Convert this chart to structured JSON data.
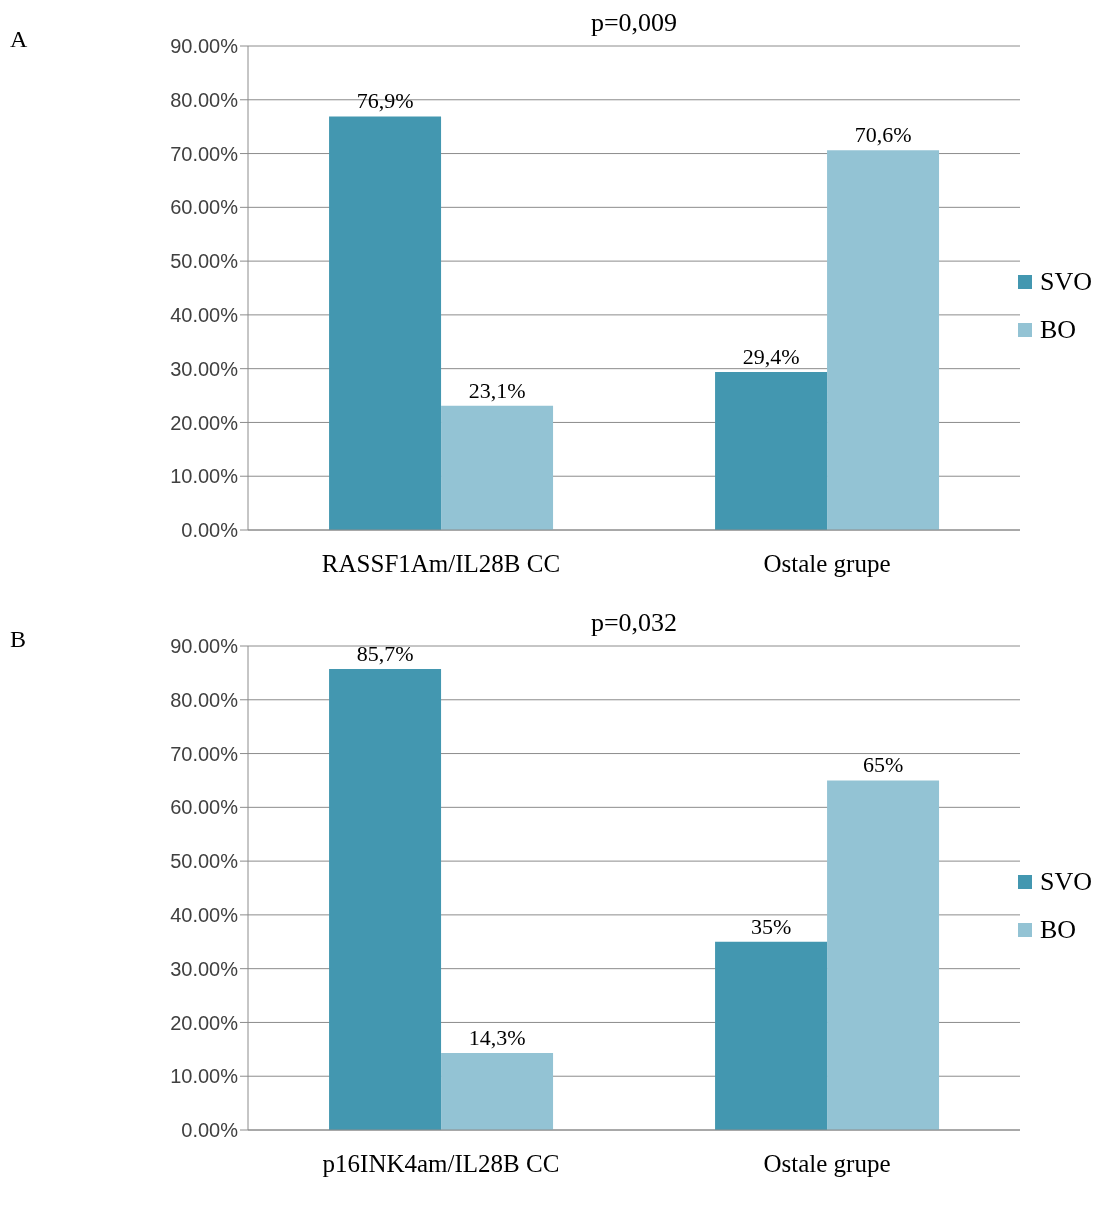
{
  "chart_data": [
    {
      "type": "bar",
      "title": "p=0,009",
      "annotations": [
        "A"
      ],
      "categories": [
        "RASSF1Am/IL28B CC",
        "Ostale grupe"
      ],
      "series": [
        {
          "name": "SVO",
          "color": "#4397b0",
          "values": [
            76.9,
            29.4
          ],
          "value_labels": [
            "76,9%",
            "29,4%"
          ]
        },
        {
          "name": "BO",
          "color": "#93c3d4",
          "values": [
            23.1,
            70.6
          ],
          "value_labels": [
            "23,1%",
            "70,6%"
          ]
        }
      ],
      "ylim": [
        0,
        90
      ],
      "yticks": [
        {
          "value": 0,
          "label": "0.00%"
        },
        {
          "value": 10,
          "label": "10.00%"
        },
        {
          "value": 20,
          "label": "20.00%"
        },
        {
          "value": 30,
          "label": "30.00%"
        },
        {
          "value": 40,
          "label": "40.00%"
        },
        {
          "value": 50,
          "label": "50.00%"
        },
        {
          "value": 60,
          "label": "60.00%"
        },
        {
          "value": 70,
          "label": "70.00%"
        },
        {
          "value": 80,
          "label": "80.00%"
        },
        {
          "value": 90,
          "label": "90.00%"
        }
      ],
      "grid": "y",
      "legend": "right"
    },
    {
      "type": "bar",
      "title": "p=0,032",
      "annotations": [
        "B"
      ],
      "categories": [
        "p16INK4am/IL28B CC",
        "Ostale grupe"
      ],
      "series": [
        {
          "name": "SVO",
          "color": "#4397b0",
          "values": [
            85.7,
            35
          ],
          "value_labels": [
            "85,7%",
            "35%"
          ]
        },
        {
          "name": "BO",
          "color": "#93c3d4",
          "values": [
            14.3,
            65
          ],
          "value_labels": [
            "14,3%",
            "65%"
          ]
        }
      ],
      "ylim": [
        0,
        90
      ],
      "yticks": [
        {
          "value": 0,
          "label": "0.00%"
        },
        {
          "value": 10,
          "label": "10.00%"
        },
        {
          "value": 20,
          "label": "20.00%"
        },
        {
          "value": 30,
          "label": "30.00%"
        },
        {
          "value": 40,
          "label": "40.00%"
        },
        {
          "value": 50,
          "label": "50.00%"
        },
        {
          "value": 60,
          "label": "60.00%"
        },
        {
          "value": 70,
          "label": "70.00%"
        },
        {
          "value": 80,
          "label": "80.00%"
        },
        {
          "value": 90,
          "label": "90.00%"
        }
      ],
      "grid": "y",
      "legend": "right"
    }
  ]
}
